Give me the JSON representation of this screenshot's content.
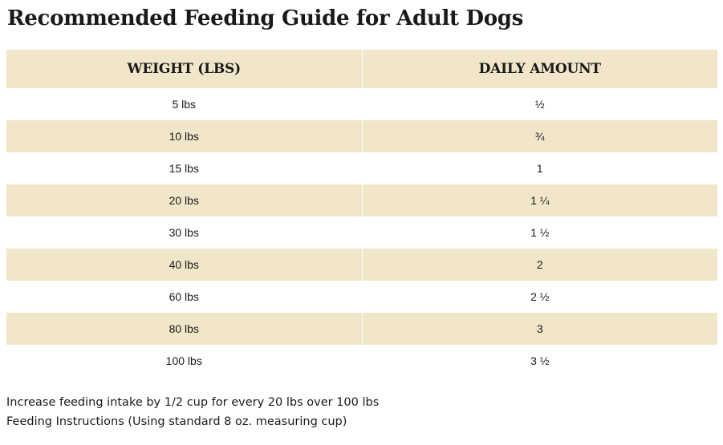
{
  "title": "Recommended Feeding Guide for Adult Dogs",
  "table": {
    "headers": [
      "WEIGHT (LBS)",
      "DAILY AMOUNT"
    ],
    "rows": [
      [
        "5 lbs",
        "½"
      ],
      [
        "10 lbs",
        "¾"
      ],
      [
        "15 lbs",
        "1"
      ],
      [
        "20 lbs",
        "1 ¼"
      ],
      [
        "30 lbs",
        "1 ½"
      ],
      [
        "40 lbs",
        "2"
      ],
      [
        "60 lbs",
        "2 ½"
      ],
      [
        "80 lbs",
        "3"
      ],
      [
        "100 lbs",
        "3 ½"
      ]
    ]
  },
  "notes": [
    "Increase feeding intake by 1/2 cup for every 20 lbs over 100 lbs",
    "Feeding Instructions (Using standard 8 oz. measuring cup)"
  ],
  "colors": {
    "header_background": "#f1e6c9",
    "stripe_background": "#f1e6c9",
    "row_background": "#ffffff",
    "text": "#1a1a1a"
  }
}
